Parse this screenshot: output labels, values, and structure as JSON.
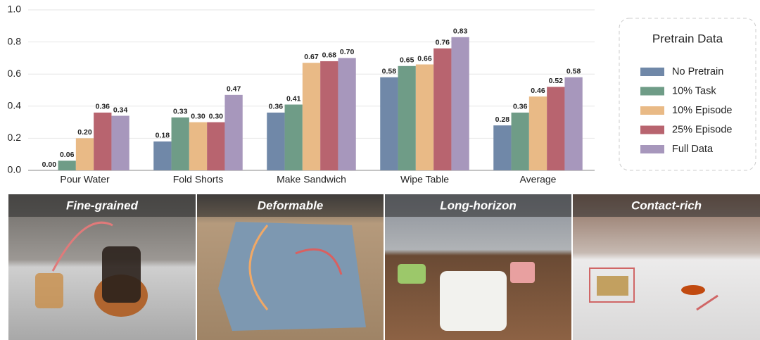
{
  "chart_data": {
    "type": "bar",
    "categories": [
      "Pour Water",
      "Fold Shorts",
      "Make Sandwich",
      "Wipe Table",
      "Average"
    ],
    "series": [
      {
        "name": "No Pretrain",
        "color": "#7088a8",
        "values": [
          0.0,
          0.18,
          0.36,
          0.58,
          0.28
        ],
        "value_labels": [
          "0.00",
          "0.18",
          "0.36",
          "0.58",
          "0.28"
        ]
      },
      {
        "name": "10% Task",
        "color": "#6f9c87",
        "values": [
          0.06,
          0.33,
          0.41,
          0.65,
          0.36
        ],
        "value_labels": [
          "0.06",
          "0.33",
          "0.41",
          "0.65",
          "0.36"
        ]
      },
      {
        "name": "10% Episode",
        "color": "#e9ba86",
        "values": [
          0.2,
          0.3,
          0.67,
          0.66,
          0.46
        ],
        "value_labels": [
          "0.20",
          "0.30",
          "0.67",
          "0.66",
          "0.46"
        ]
      },
      {
        "name": "25% Episode",
        "color": "#b8646f",
        "values": [
          0.36,
          0.3,
          0.68,
          0.76,
          0.52
        ],
        "value_labels": [
          "0.36",
          "0.30",
          "0.68",
          "0.76",
          "0.52"
        ]
      },
      {
        "name": "Full Data",
        "color": "#a797bc",
        "values": [
          0.34,
          0.47,
          0.7,
          0.83,
          0.58
        ],
        "value_labels": [
          "0.34",
          "0.47",
          "0.70",
          "0.83",
          "0.58"
        ]
      }
    ],
    "ylim": [
      0,
      1.0
    ],
    "yticks": [
      {
        "value": 0,
        "label": "0.0"
      },
      {
        "value": 0.2,
        "label": "0.2"
      },
      {
        "value": 0.4,
        "label": "0.4"
      },
      {
        "value": 0.6,
        "label": "0.6"
      },
      {
        "value": 0.8,
        "label": "0.8"
      },
      {
        "value": 1.0,
        "label": "1.0"
      }
    ],
    "grid": true,
    "legend": {
      "title": "Pretrain Data",
      "position": "right"
    }
  },
  "panels": [
    {
      "label": "Fine-grained"
    },
    {
      "label": "Deformable"
    },
    {
      "label": "Long-horizon"
    },
    {
      "label": "Contact-rich"
    }
  ]
}
